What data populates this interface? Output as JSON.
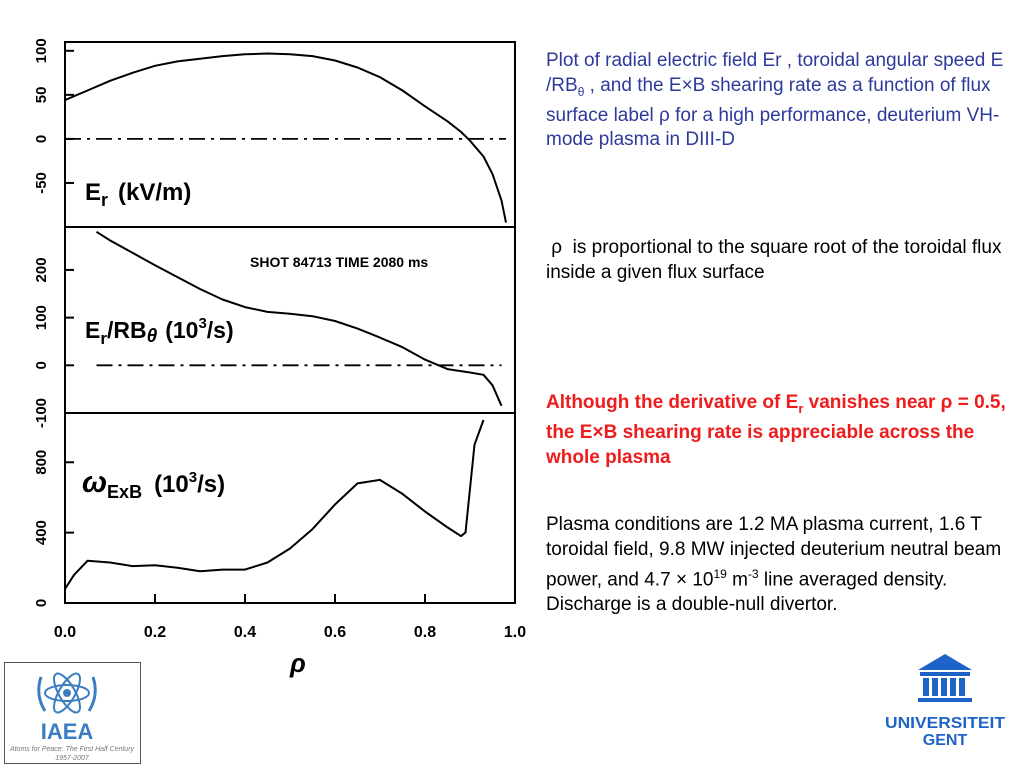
{
  "figure": {
    "x_ticks": [
      "0.0",
      "0.2",
      "0.4",
      "0.6",
      "0.8",
      "1.0"
    ],
    "x_axis_label": "ρ",
    "panel1": {
      "label_main": "E",
      "label_sub": "r",
      "label_units": "(kV/m)",
      "y_ticks": [
        "100",
        "50",
        "0",
        "-50"
      ]
    },
    "panel2": {
      "shot_text": "SHOT 84713 TIME 2080 ms",
      "label_main": "E",
      "label_sub": "r",
      "label_div": "/RB",
      "label_theta": "θ",
      "label_units_a": "(10",
      "label_units_exp": "3",
      "label_units_b": "/s)",
      "y_ticks": [
        "200",
        "100",
        "0",
        "-100"
      ]
    },
    "panel3": {
      "label_omega": "ω",
      "label_sub": "ExB",
      "label_units_a": "(10",
      "label_units_exp": "3",
      "label_units_b": "/s)",
      "y_ticks": [
        "800",
        "400",
        "0"
      ]
    }
  },
  "chart_data": [
    {
      "type": "line",
      "ylabel": "Er (kV/m)",
      "x_ticks": [
        0.0,
        0.2,
        0.4,
        0.6,
        0.8,
        1.0
      ],
      "ylim": [
        -100,
        110
      ],
      "x": [
        0.0,
        0.05,
        0.1,
        0.15,
        0.2,
        0.25,
        0.3,
        0.35,
        0.4,
        0.45,
        0.5,
        0.55,
        0.6,
        0.65,
        0.7,
        0.75,
        0.8,
        0.85,
        0.88,
        0.9,
        0.93,
        0.95,
        0.97,
        0.98
      ],
      "series": [
        {
          "values": [
            44,
            55,
            66,
            75,
            83,
            88,
            91,
            94,
            96,
            97,
            96,
            94,
            89,
            81,
            70,
            55,
            37,
            20,
            8,
            -2,
            -20,
            -40,
            -70,
            -95
          ]
        },
        {
          "style": "dash-dot",
          "values": [
            0,
            0,
            0,
            0,
            0,
            0,
            0,
            0,
            0,
            0,
            0,
            0,
            0,
            0,
            0,
            0,
            0,
            0,
            0,
            0,
            0,
            0,
            0,
            0
          ]
        }
      ]
    },
    {
      "type": "line",
      "ylabel": "Er/RBθ (10^3/s)",
      "annotation": "SHOT 84713 TIME 2080 ms",
      "x_ticks": [
        0.0,
        0.2,
        0.4,
        0.6,
        0.8,
        1.0
      ],
      "ylim": [
        -100,
        290
      ],
      "x": [
        0.07,
        0.1,
        0.15,
        0.2,
        0.25,
        0.3,
        0.35,
        0.4,
        0.45,
        0.5,
        0.55,
        0.6,
        0.65,
        0.7,
        0.75,
        0.8,
        0.85,
        0.9,
        0.93,
        0.95,
        0.97
      ],
      "series": [
        {
          "values": [
            280,
            262,
            236,
            210,
            185,
            160,
            138,
            122,
            112,
            108,
            103,
            93,
            77,
            58,
            38,
            12,
            -8,
            -15,
            -20,
            -42,
            -85
          ]
        },
        {
          "style": "dash-dot",
          "values": [
            0,
            0,
            0,
            0,
            0,
            0,
            0,
            0,
            0,
            0,
            0,
            0,
            0,
            0,
            0,
            0,
            0,
            0,
            0,
            0,
            0
          ]
        }
      ]
    },
    {
      "type": "line",
      "ylabel": "ωExB (10^3/s)",
      "x_ticks": [
        0.0,
        0.2,
        0.4,
        0.6,
        0.8,
        1.0
      ],
      "ylim": [
        0,
        1080
      ],
      "x": [
        0.0,
        0.02,
        0.05,
        0.1,
        0.15,
        0.2,
        0.25,
        0.3,
        0.35,
        0.4,
        0.45,
        0.5,
        0.55,
        0.6,
        0.65,
        0.7,
        0.75,
        0.8,
        0.85,
        0.88,
        0.89,
        0.91,
        0.93
      ],
      "series": [
        {
          "values": [
            80,
            160,
            240,
            230,
            210,
            215,
            200,
            180,
            190,
            190,
            230,
            310,
            420,
            560,
            680,
            700,
            620,
            520,
            430,
            380,
            400,
            900,
            1040
          ]
        }
      ]
    }
  ],
  "text": {
    "p1_a": "Plot of radial electric field Er , toroidal angular speed E /RB",
    "p1_sub": "θ",
    "p1_b": " , and the E",
    "p1_times": "×",
    "p1_c": "B shearing rate as a function of flux surface label ",
    "p1_rho": "ρ",
    "p1_d": " for a high performance, deuterium VH-mode plasma in DIII-D",
    "p2_rho": "ρ",
    "p2_text": "  is proportional to the square root of the toroidal flux inside a given flux surface",
    "p3_a": "Although the derivative of E",
    "p3_sub": "r",
    "p3_b": " vanishes near ",
    "p3_rho": "ρ",
    "p3_c": " = 0.5, the E",
    "p3_times": "×",
    "p3_d": "B shearing rate is appreciable across the whole plasma",
    "p4_a": "Plasma conditions are 1.2 MA plasma current, 1.6 T toroidal field, 9.8 MW injected deuterium neutral  beam  power, and 4.7 ",
    "p4_times": "×",
    "p4_b": " 10",
    "p4_exp1": "19",
    "p4_c": " m",
    "p4_exp2": "-3",
    "p4_d": " line averaged density. Discharge is a double-null divertor."
  },
  "logos": {
    "iaea_text": "IAEA",
    "iaea_motto": "Atoms for Peace: The First Half Century",
    "iaea_years": "1957-2007",
    "ugent_line1": "UNIVERSITEIT",
    "ugent_line2": "GENT"
  },
  "colors": {
    "blue_text": "#2e3a9a",
    "red_text": "#ee1c1c",
    "iaea_blue": "#3a7dc0",
    "ugent_blue": "#1e64c8"
  }
}
